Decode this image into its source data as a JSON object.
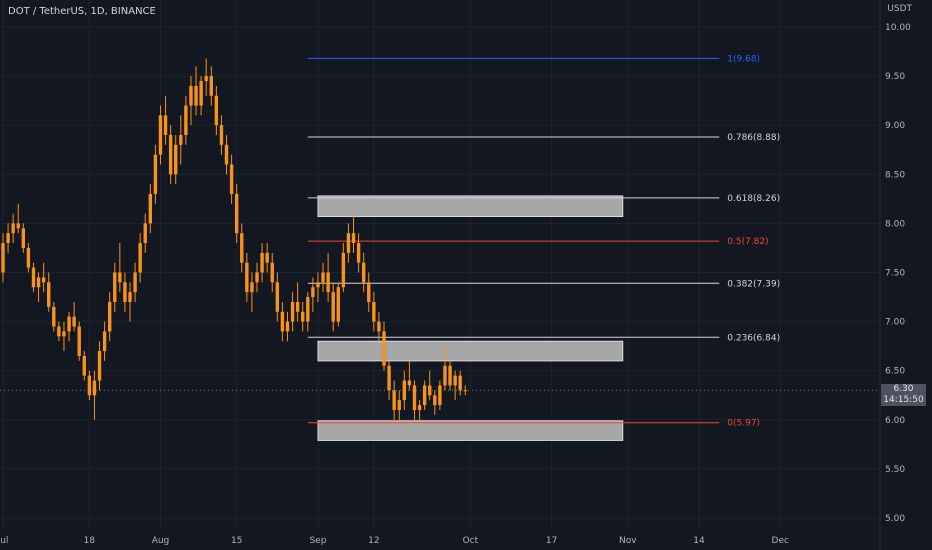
{
  "header": {
    "title": "DOT / TetherUS, 1D, BINANCE",
    "unit": "USDT"
  },
  "price_tag": {
    "price": "6.30",
    "countdown": "14:15:50"
  },
  "colors": {
    "candle": "#f7931a",
    "background": "#131722",
    "fib_base": "#d1d4dc",
    "fib_top": "#2962ff",
    "fib_mid": "#f44336",
    "fib_zero": "#f44336",
    "zone": "#a6a6a6"
  },
  "chart_data": {
    "type": "candlestick",
    "title": "DOT / TetherUS, 1D, BINANCE",
    "ylabel": "USDT",
    "ylim": [
      4.9,
      10.1
    ],
    "y_ticks": [
      "10.00",
      "9.50",
      "9.00",
      "8.50",
      "8.00",
      "7.50",
      "7.00",
      "6.50",
      "6.00",
      "5.50",
      "5.00"
    ],
    "x_ticks": [
      "Jul",
      "18",
      "Aug",
      "15",
      "Sep",
      "12",
      "Oct",
      "17",
      "Nov",
      "14",
      "Dec"
    ],
    "x_tick_days": [
      0,
      17,
      31,
      46,
      62,
      73,
      92,
      108,
      123,
      137,
      153
    ],
    "fib_levels": [
      {
        "label": "1(9.68)",
        "value": 9.68
      },
      {
        "label": "0.786(8.88)",
        "value": 8.88
      },
      {
        "label": "0.618(8.26)",
        "value": 8.26
      },
      {
        "label": "0.5(7.82)",
        "value": 7.82
      },
      {
        "label": "0.382(7.39)",
        "value": 7.39
      },
      {
        "label": "0.236(6.84)",
        "value": 6.84
      },
      {
        "label": "0(5.97)",
        "value": 5.97
      }
    ],
    "zones": [
      {
        "from_day": 62,
        "to_day": 122,
        "low": 8.07,
        "high": 8.28
      },
      {
        "from_day": 62,
        "to_day": 122,
        "low": 6.6,
        "high": 6.8
      },
      {
        "from_day": 62,
        "to_day": 122,
        "low": 5.79,
        "high": 5.99
      }
    ],
    "current_price": 6.3,
    "candles": [
      [
        7.5,
        7.9,
        7.4,
        7.8
      ],
      [
        7.8,
        8.0,
        7.7,
        7.9
      ],
      [
        7.9,
        8.1,
        7.8,
        8.0
      ],
      [
        8.0,
        8.2,
        7.9,
        7.95
      ],
      [
        7.95,
        8.0,
        7.7,
        7.75
      ],
      [
        7.75,
        7.8,
        7.5,
        7.55
      ],
      [
        7.55,
        7.6,
        7.3,
        7.35
      ],
      [
        7.35,
        7.5,
        7.2,
        7.45
      ],
      [
        7.45,
        7.6,
        7.3,
        7.4
      ],
      [
        7.4,
        7.5,
        7.1,
        7.15
      ],
      [
        7.15,
        7.2,
        6.9,
        6.95
      ],
      [
        6.95,
        7.0,
        6.8,
        6.85
      ],
      [
        6.85,
        7.0,
        6.7,
        6.9
      ],
      [
        6.9,
        7.1,
        6.8,
        7.05
      ],
      [
        7.05,
        7.2,
        6.9,
        6.95
      ],
      [
        6.95,
        7.0,
        6.6,
        6.65
      ],
      [
        6.65,
        6.7,
        6.4,
        6.45
      ],
      [
        6.45,
        6.5,
        6.2,
        6.25
      ],
      [
        6.25,
        6.5,
        6.0,
        6.4
      ],
      [
        6.4,
        6.8,
        6.3,
        6.7
      ],
      [
        6.7,
        7.0,
        6.6,
        6.9
      ],
      [
        6.9,
        7.3,
        6.8,
        7.2
      ],
      [
        7.2,
        7.6,
        7.1,
        7.5
      ],
      [
        7.5,
        7.8,
        7.3,
        7.4
      ],
      [
        7.4,
        7.5,
        7.1,
        7.2
      ],
      [
        7.2,
        7.4,
        7.0,
        7.3
      ],
      [
        7.3,
        7.6,
        7.2,
        7.5
      ],
      [
        7.5,
        7.9,
        7.4,
        7.8
      ],
      [
        7.8,
        8.1,
        7.7,
        8.0
      ],
      [
        8.0,
        8.4,
        7.9,
        8.3
      ],
      [
        8.3,
        8.8,
        8.2,
        8.7
      ],
      [
        8.7,
        9.2,
        8.6,
        9.1
      ],
      [
        9.1,
        9.3,
        8.8,
        8.9
      ],
      [
        8.9,
        9.0,
        8.4,
        8.5
      ],
      [
        8.5,
        8.9,
        8.4,
        8.8
      ],
      [
        8.8,
        9.1,
        8.6,
        8.9
      ],
      [
        8.9,
        9.3,
        8.8,
        9.2
      ],
      [
        9.2,
        9.5,
        9.0,
        9.4
      ],
      [
        9.4,
        9.6,
        9.1,
        9.2
      ],
      [
        9.2,
        9.5,
        9.1,
        9.45
      ],
      [
        9.45,
        9.68,
        9.3,
        9.5
      ],
      [
        9.5,
        9.6,
        9.2,
        9.3
      ],
      [
        9.3,
        9.4,
        8.9,
        9.0
      ],
      [
        9.0,
        9.1,
        8.7,
        8.8
      ],
      [
        8.8,
        8.9,
        8.5,
        8.6
      ],
      [
        8.6,
        8.7,
        8.2,
        8.3
      ],
      [
        8.3,
        8.4,
        7.8,
        7.9
      ],
      [
        7.9,
        8.0,
        7.5,
        7.6
      ],
      [
        7.6,
        7.7,
        7.2,
        7.3
      ],
      [
        7.3,
        7.5,
        7.1,
        7.4
      ],
      [
        7.4,
        7.6,
        7.3,
        7.5
      ],
      [
        7.5,
        7.8,
        7.4,
        7.7
      ],
      [
        7.7,
        7.8,
        7.5,
        7.6
      ],
      [
        7.6,
        7.7,
        7.3,
        7.4
      ],
      [
        7.4,
        7.5,
        7.0,
        7.1
      ],
      [
        7.1,
        7.2,
        6.8,
        6.9
      ],
      [
        6.9,
        7.1,
        6.8,
        7.0
      ],
      [
        7.0,
        7.3,
        6.9,
        7.2
      ],
      [
        7.2,
        7.4,
        7.0,
        7.1
      ],
      [
        7.1,
        7.2,
        6.9,
        7.0
      ],
      [
        7.0,
        7.3,
        6.9,
        7.25
      ],
      [
        7.25,
        7.45,
        7.1,
        7.35
      ],
      [
        7.35,
        7.5,
        7.2,
        7.4
      ],
      [
        7.4,
        7.6,
        7.3,
        7.5
      ],
      [
        7.5,
        7.7,
        7.2,
        7.3
      ],
      [
        7.3,
        7.4,
        6.9,
        7.0
      ],
      [
        7.0,
        7.4,
        6.95,
        7.35
      ],
      [
        7.35,
        7.8,
        7.3,
        7.7
      ],
      [
        7.7,
        8.0,
        7.6,
        7.9
      ],
      [
        7.9,
        8.1,
        7.7,
        7.8
      ],
      [
        7.8,
        7.9,
        7.5,
        7.6
      ],
      [
        7.6,
        7.7,
        7.3,
        7.4
      ],
      [
        7.4,
        7.5,
        7.1,
        7.2
      ],
      [
        7.2,
        7.3,
        6.9,
        7.0
      ],
      [
        7.0,
        7.1,
        6.8,
        6.9
      ],
      [
        6.9,
        7.0,
        6.5,
        6.55
      ],
      [
        6.55,
        6.6,
        6.2,
        6.3
      ],
      [
        6.3,
        6.4,
        6.0,
        6.1
      ],
      [
        6.1,
        6.3,
        6.0,
        6.2
      ],
      [
        6.2,
        6.5,
        6.1,
        6.4
      ],
      [
        6.4,
        6.6,
        6.3,
        6.35
      ],
      [
        6.35,
        6.4,
        6.0,
        6.1
      ],
      [
        6.1,
        6.2,
        6.0,
        6.15
      ],
      [
        6.15,
        6.4,
        6.1,
        6.35
      ],
      [
        6.35,
        6.5,
        6.2,
        6.25
      ],
      [
        6.25,
        6.3,
        6.05,
        6.15
      ],
      [
        6.15,
        6.4,
        6.1,
        6.35
      ],
      [
        6.35,
        6.75,
        6.3,
        6.55
      ],
      [
        6.55,
        6.6,
        6.3,
        6.35
      ],
      [
        6.35,
        6.5,
        6.2,
        6.45
      ],
      [
        6.45,
        6.5,
        6.25,
        6.3
      ],
      [
        6.3,
        6.35,
        6.25,
        6.3
      ]
    ]
  }
}
